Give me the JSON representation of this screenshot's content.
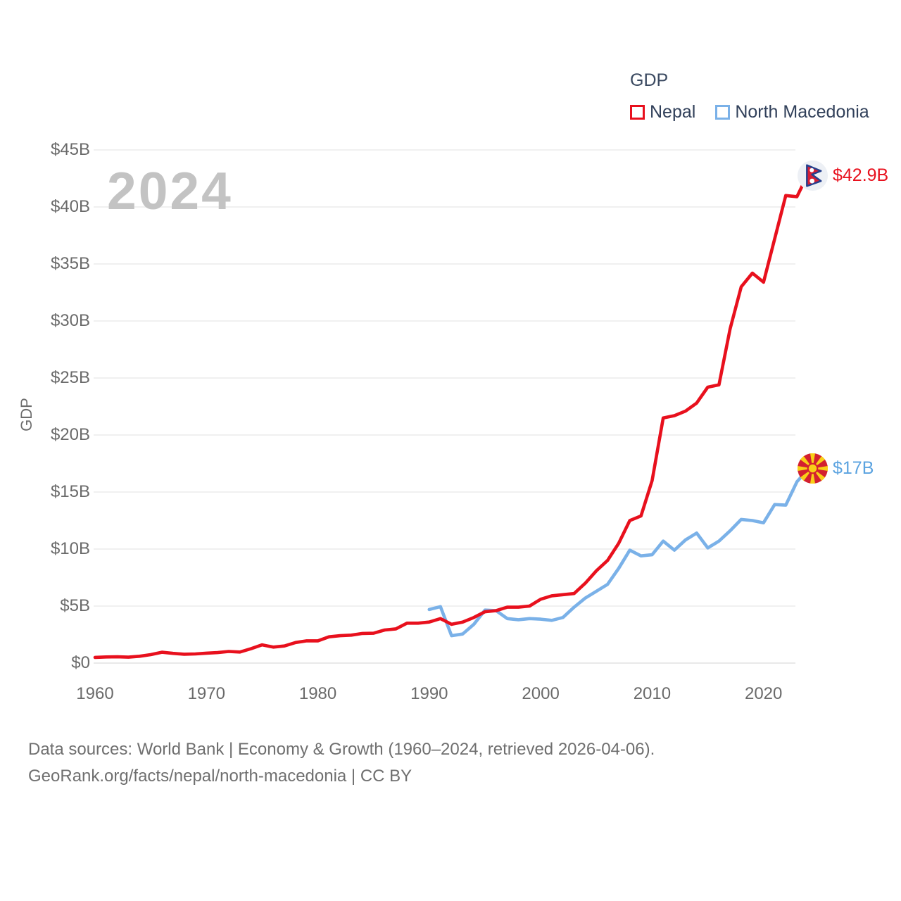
{
  "legend": {
    "title": "GDP",
    "series": [
      {
        "label": "Nepal",
        "color": "#e8101d"
      },
      {
        "label": "North Macedonia",
        "color": "#7ab1e8"
      }
    ]
  },
  "watermark": "2024",
  "y_axis": {
    "title": "GDP",
    "ticks": [
      "$0",
      "$5B",
      "$10B",
      "$15B",
      "$20B",
      "$25B",
      "$30B",
      "$35B",
      "$40B",
      "$45B"
    ],
    "tick_values_billions": [
      0,
      5,
      10,
      15,
      20,
      25,
      30,
      35,
      40,
      45
    ]
  },
  "x_axis": {
    "ticks": [
      "1960",
      "1970",
      "1980",
      "1990",
      "2000",
      "2010",
      "2020"
    ],
    "tick_values": [
      1960,
      1970,
      1980,
      1990,
      2000,
      2010,
      2020
    ]
  },
  "end_labels": [
    {
      "series": "Nepal",
      "text": "$42.9B",
      "color": "#e8101d",
      "flag": "nepal-flag"
    },
    {
      "series": "North Macedonia",
      "text": "$17B",
      "color": "#5ba3e0",
      "flag": "north-macedonia-flag"
    }
  ],
  "footer": {
    "line1": "Data sources: World Bank | Economy & Growth (1960–2024, retrieved 2026-04-06).",
    "line2": "GeoRank.org/facts/nepal/north-macedonia | CC BY"
  },
  "colors": {
    "nepal_line": "#e8101d",
    "north_macedonia_line": "#7ab1e8",
    "gridline": "#ececec",
    "baseline": "#e2e2e2",
    "axis_text": "#6a6a6a",
    "legend_text": "#31405a",
    "watermark": "#c3c3c3"
  },
  "chart_data": {
    "type": "line",
    "title": "GDP",
    "ylabel": "GDP",
    "unit": "billions USD",
    "ylim_billions": [
      0,
      45
    ],
    "xlim_years": [
      1960,
      2024
    ],
    "grid": "horizontal",
    "legend_position": "top-right",
    "x": [
      1960,
      1961,
      1962,
      1963,
      1964,
      1965,
      1966,
      1967,
      1968,
      1969,
      1970,
      1971,
      1972,
      1973,
      1974,
      1975,
      1976,
      1977,
      1978,
      1979,
      1980,
      1981,
      1982,
      1983,
      1984,
      1985,
      1986,
      1987,
      1988,
      1989,
      1990,
      1991,
      1992,
      1993,
      1994,
      1995,
      1996,
      1997,
      1998,
      1999,
      2000,
      2001,
      2002,
      2003,
      2004,
      2005,
      2006,
      2007,
      2008,
      2009,
      2010,
      2011,
      2012,
      2013,
      2014,
      2015,
      2016,
      2017,
      2018,
      2019,
      2020,
      2021,
      2022,
      2023,
      2024
    ],
    "series": [
      {
        "name": "Nepal",
        "color": "#e8101d",
        "end_value_label": "$42.9B",
        "values_billions": [
          0.5,
          0.54,
          0.55,
          0.52,
          0.6,
          0.74,
          0.95,
          0.85,
          0.78,
          0.8,
          0.87,
          0.92,
          1.02,
          0.97,
          1.26,
          1.6,
          1.4,
          1.5,
          1.8,
          1.95,
          1.95,
          2.3,
          2.4,
          2.45,
          2.6,
          2.62,
          2.9,
          3.0,
          3.5,
          3.5,
          3.6,
          3.9,
          3.4,
          3.6,
          4.0,
          4.5,
          4.6,
          4.9,
          4.9,
          5.0,
          5.6,
          5.9,
          6.0,
          6.1,
          7.0,
          8.1,
          9.0,
          10.5,
          12.5,
          12.9,
          16.0,
          21.5,
          21.7,
          22.1,
          22.8,
          24.2,
          24.4,
          29.3,
          33.0,
          34.2,
          33.4,
          37.2,
          41.0,
          40.9,
          42.9
        ]
      },
      {
        "name": "North Macedonia",
        "color": "#7ab1e8",
        "end_value_label": "$17B",
        "values_billions": [
          null,
          null,
          null,
          null,
          null,
          null,
          null,
          null,
          null,
          null,
          null,
          null,
          null,
          null,
          null,
          null,
          null,
          null,
          null,
          null,
          null,
          null,
          null,
          null,
          null,
          null,
          null,
          null,
          null,
          null,
          4.7,
          4.95,
          2.4,
          2.55,
          3.4,
          4.65,
          4.6,
          3.9,
          3.8,
          3.9,
          3.85,
          3.75,
          4.0,
          4.9,
          5.7,
          6.3,
          6.9,
          8.3,
          9.9,
          9.4,
          9.5,
          10.7,
          9.9,
          10.8,
          11.4,
          10.1,
          10.7,
          11.6,
          12.6,
          12.5,
          12.3,
          13.9,
          13.85,
          15.9,
          17.0
        ]
      }
    ]
  }
}
